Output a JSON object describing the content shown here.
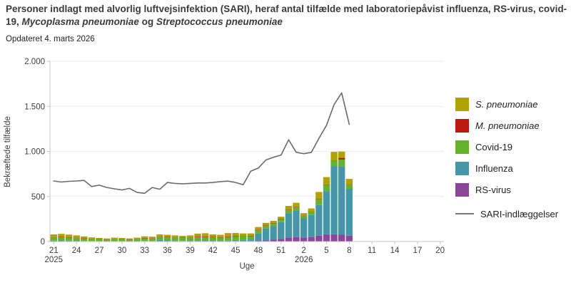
{
  "header": {
    "title_part1": "Personer indlagt med alvorlig luftvejsinfektion (SARI), heraf antal tilfælde med laboratoriepåvist influenza, RS-virus, covid-19, ",
    "title_part2": "Mycoplasma pneumoniae",
    "title_part3": " og ",
    "title_part4": "Streptococcus pneumoniae",
    "subtitle": "Opdateret 4. marts 2026"
  },
  "legend": {
    "items": [
      {
        "label": "S. pneumoniae",
        "color": "#b1a006",
        "italic": true
      },
      {
        "label": "M. pneumoniae",
        "color": "#bb1a10",
        "italic": true
      },
      {
        "label": "Covid-19",
        "color": "#64b22e",
        "italic": false
      },
      {
        "label": "Influenza",
        "color": "#4795a8",
        "italic": false
      },
      {
        "label": "RS-virus",
        "color": "#8d459b",
        "italic": false
      }
    ],
    "line_item": {
      "label": "SARI-indlæggelser",
      "color": "#7a7a7a"
    }
  },
  "chart_data": {
    "type": "stacked-bar+line",
    "title": "Personer indlagt med alvorlig luftvejsinfektion (SARI), heraf antal tilfælde med laboratoriepåvist influenza, RS-virus, covid-19, Mycoplasma pneumoniae og Streptococcus pneumoniae",
    "xlabel": "Uge",
    "ylabel": "Bekræftede tilfælde",
    "ylim": [
      0,
      2000
    ],
    "yticks": [
      0,
      500,
      1000,
      1500,
      2000
    ],
    "ytick_labels": [
      "0",
      "500",
      "1.000",
      "1.500",
      "2.000"
    ],
    "grid": "horizontal",
    "legend_position": "right",
    "categories": [
      "21",
      "22",
      "23",
      "24",
      "25",
      "26",
      "27",
      "28",
      "29",
      "30",
      "31",
      "32",
      "33",
      "34",
      "35",
      "36",
      "37",
      "38",
      "39",
      "40",
      "41",
      "42",
      "43",
      "44",
      "45",
      "46",
      "47",
      "48",
      "49",
      "50",
      "51",
      "52",
      "1",
      "2",
      "3",
      "4",
      "5",
      "6",
      "7",
      "8",
      "9",
      "10",
      "11",
      "12",
      "13",
      "14",
      "15",
      "16",
      "17",
      "18",
      "19",
      "20"
    ],
    "labeled_tick_step": 3,
    "year_labels": [
      {
        "text": "2025",
        "category_index": 0
      },
      {
        "text": "2026",
        "category_index": 33
      }
    ],
    "series": [
      {
        "name": "RS-virus",
        "color": "#8d459b",
        "values": [
          0,
          0,
          0,
          0,
          0,
          0,
          0,
          0,
          0,
          0,
          0,
          0,
          0,
          0,
          0,
          0,
          0,
          0,
          0,
          0,
          0,
          0,
          0,
          0,
          5,
          5,
          5,
          8,
          15,
          20,
          30,
          45,
          50,
          45,
          50,
          65,
          80,
          80,
          75,
          65,
          0,
          0,
          0,
          0,
          0,
          0,
          0,
          0,
          0,
          0,
          0,
          0
        ]
      },
      {
        "name": "Influenza",
        "color": "#4795a8",
        "values": [
          10,
          12,
          10,
          8,
          6,
          5,
          4,
          3,
          4,
          4,
          3,
          4,
          6,
          5,
          18,
          12,
          8,
          7,
          8,
          8,
          8,
          8,
          8,
          10,
          12,
          14,
          18,
          85,
          130,
          150,
          185,
          270,
          290,
          212,
          245,
          340,
          480,
          750,
          760,
          520,
          0,
          0,
          0,
          0,
          0,
          0,
          0,
          0,
          0,
          0,
          0,
          0
        ]
      },
      {
        "name": "Covid-19",
        "color": "#64b22e",
        "values": [
          35,
          35,
          32,
          30,
          25,
          22,
          20,
          18,
          22,
          20,
          18,
          22,
          30,
          28,
          35,
          35,
          34,
          32,
          34,
          40,
          42,
          38,
          36,
          40,
          40,
          38,
          36,
          35,
          32,
          32,
          30,
          35,
          40,
          30,
          32,
          60,
          65,
          65,
          75,
          45,
          0,
          0,
          0,
          0,
          0,
          0,
          0,
          0,
          0,
          0,
          0,
          0
        ]
      },
      {
        "name": "M. pneumoniae",
        "color": "#bb1a10",
        "values": [
          4,
          5,
          5,
          4,
          4,
          3,
          3,
          4,
          3,
          3,
          3,
          3,
          4,
          4,
          4,
          4,
          4,
          4,
          4,
          6,
          6,
          5,
          5,
          6,
          6,
          5,
          5,
          5,
          4,
          4,
          4,
          5,
          5,
          4,
          4,
          5,
          5,
          5,
          18,
          5,
          0,
          0,
          0,
          0,
          0,
          0,
          0,
          0,
          0,
          0,
          0,
          0
        ]
      },
      {
        "name": "S. pneumoniae",
        "color": "#b1a006",
        "values": [
          30,
          33,
          30,
          26,
          22,
          16,
          13,
          10,
          14,
          12,
          11,
          14,
          18,
          17,
          22,
          24,
          22,
          20,
          22,
          34,
          36,
          28,
          26,
          38,
          32,
          28,
          26,
          28,
          26,
          24,
          26,
          40,
          45,
          24,
          36,
          80,
          85,
          95,
          70,
          60,
          0,
          0,
          0,
          0,
          0,
          0,
          0,
          0,
          0,
          0,
          0,
          0
        ]
      }
    ],
    "line": {
      "name": "SARI-indlæggelser",
      "color": "#6b6b6b",
      "values": [
        672,
        660,
        668,
        672,
        678,
        610,
        625,
        600,
        585,
        572,
        590,
        545,
        535,
        600,
        580,
        655,
        645,
        640,
        645,
        650,
        650,
        655,
        665,
        670,
        655,
        630,
        780,
        815,
        905,
        935,
        960,
        1130,
        990,
        975,
        990,
        1145,
        1290,
        1520,
        1650,
        1300,
        null,
        null,
        null,
        null,
        null,
        null,
        null,
        null,
        null,
        null,
        null,
        null
      ]
    }
  }
}
